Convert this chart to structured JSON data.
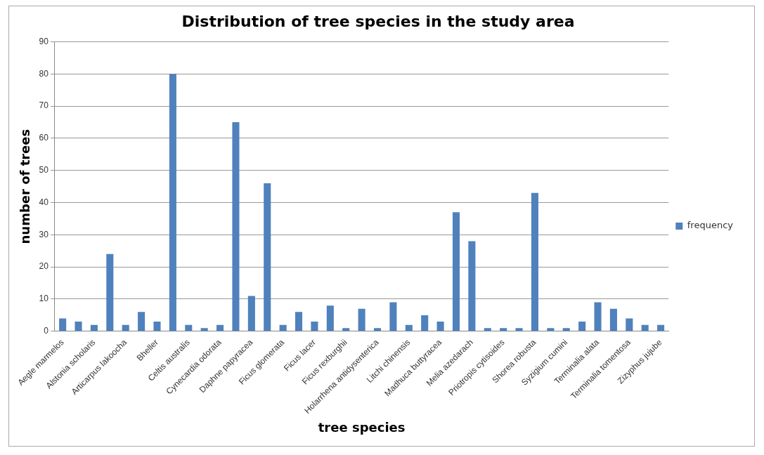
{
  "chart_data": {
    "type": "bar",
    "title": "Distribution of tree species in the study area",
    "xlabel": "tree species",
    "ylabel": "number of trees",
    "categories": [
      "Aegle marmelos",
      null,
      "Alstonia scholaris",
      null,
      "Articarpus lakoocha",
      null,
      "Bheller",
      null,
      "Celtis australis",
      null,
      "Cynecardia odorata",
      null,
      "Daphne papyracea",
      null,
      "Ficus glomerata",
      null,
      "Ficus lacer",
      null,
      "Ficus rexburghii",
      null,
      "Holarrhena antidysenterica",
      null,
      "Litchi chinensis",
      null,
      "Madhuca buttyracea",
      null,
      "Melia azedarach",
      null,
      "Priotropis cytisoides",
      null,
      "Shorea robusta",
      null,
      "Syzigium cumini",
      null,
      "Terminalia alata",
      null,
      "Terminalia tomentosa",
      null,
      "Zizyphus jujube"
    ],
    "series": [
      {
        "name": "frequency",
        "color": "#4f81bd",
        "values": [
          4,
          3,
          2,
          24,
          2,
          6,
          3,
          80,
          2,
          1,
          2,
          65,
          11,
          46,
          2,
          6,
          3,
          8,
          1,
          7,
          1,
          9,
          2,
          5,
          3,
          37,
          28,
          1,
          1,
          1,
          43,
          1,
          1,
          3,
          9,
          7,
          4,
          2,
          2
        ]
      }
    ],
    "ylim": [
      0,
      90
    ],
    "yticks": [
      0,
      10,
      20,
      30,
      40,
      50,
      60,
      70,
      80,
      90
    ],
    "grid": "y",
    "legend": "right"
  }
}
